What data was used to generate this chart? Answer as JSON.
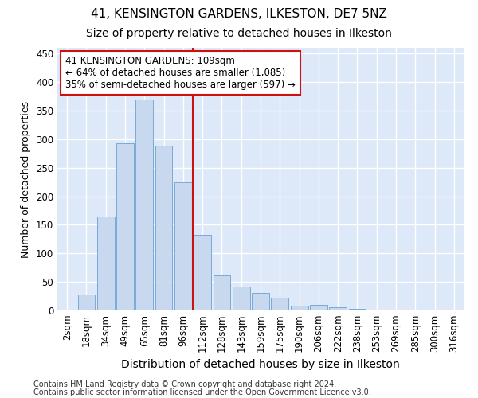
{
  "title1": "41, KENSINGTON GARDENS, ILKESTON, DE7 5NZ",
  "title2": "Size of property relative to detached houses in Ilkeston",
  "xlabel": "Distribution of detached houses by size in Ilkeston",
  "ylabel": "Number of detached properties",
  "categories": [
    "2sqm",
    "18sqm",
    "34sqm",
    "49sqm",
    "65sqm",
    "81sqm",
    "96sqm",
    "112sqm",
    "128sqm",
    "143sqm",
    "159sqm",
    "175sqm",
    "190sqm",
    "206sqm",
    "222sqm",
    "238sqm",
    "253sqm",
    "269sqm",
    "285sqm",
    "300sqm",
    "316sqm"
  ],
  "values": [
    2,
    28,
    165,
    293,
    370,
    288,
    225,
    133,
    62,
    42,
    30,
    22,
    9,
    10,
    5,
    3,
    1,
    0,
    0,
    0,
    0
  ],
  "bar_color": "#c8d8ef",
  "bar_edge_color": "#7aabd4",
  "vline_color": "#cc1111",
  "vline_index": 7,
  "annotation_text": "41 KENSINGTON GARDENS: 109sqm\n← 64% of detached houses are smaller (1,085)\n35% of semi-detached houses are larger (597) →",
  "annotation_box_facecolor": "#ffffff",
  "annotation_box_edgecolor": "#cc1111",
  "footnote1": "Contains HM Land Registry data © Crown copyright and database right 2024.",
  "footnote2": "Contains public sector information licensed under the Open Government Licence v3.0.",
  "ylim": [
    0,
    460
  ],
  "yticks": [
    0,
    50,
    100,
    150,
    200,
    250,
    300,
    350,
    400,
    450
  ],
  "bg_color": "#dde8f8",
  "grid_color": "#ffffff",
  "title1_fontsize": 11,
  "title2_fontsize": 10,
  "xlabel_fontsize": 10,
  "ylabel_fontsize": 9,
  "tick_fontsize": 8.5,
  "ann_fontsize": 8.5,
  "footnote_fontsize": 7
}
